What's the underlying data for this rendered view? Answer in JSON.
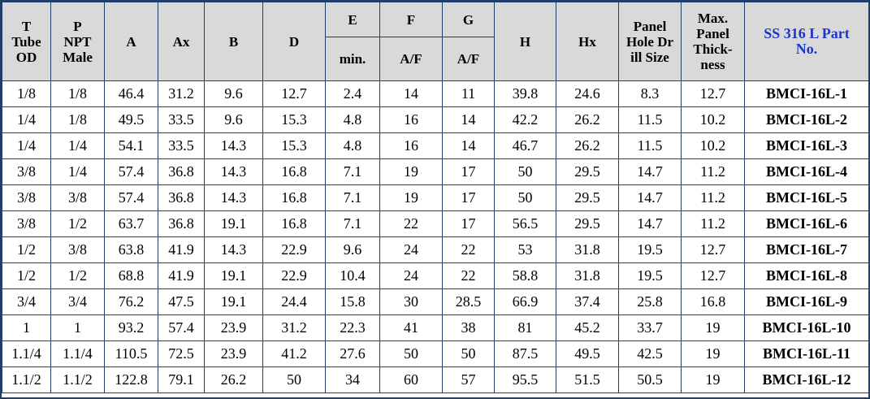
{
  "headers": {
    "t": "T\nTube\nOD",
    "p": "P\nNPT\nMale",
    "a": "A",
    "ax": "Ax",
    "b": "B",
    "d": "D",
    "e": "E",
    "e_sub": "min.",
    "f": "F",
    "f_sub": "A/F",
    "g": "G",
    "g_sub": "A/F",
    "h": "H",
    "hx": "Hx",
    "panel_hole": "Panel\nHole Dr\nill Size",
    "max_panel": "Max.\nPanel\nThick-\nness",
    "part": "SS 316 L Part\nNo."
  },
  "rows": [
    [
      "1/8",
      "1/8",
      "46.4",
      "31.2",
      "9.6",
      "12.7",
      "2.4",
      "14",
      "11",
      "39.8",
      "24.6",
      "8.3",
      "12.7",
      "BMCI-16L-1"
    ],
    [
      "1/4",
      "1/8",
      "49.5",
      "33.5",
      "9.6",
      "15.3",
      "4.8",
      "16",
      "14",
      "42.2",
      "26.2",
      "11.5",
      "10.2",
      "BMCI-16L-2"
    ],
    [
      "1/4",
      "1/4",
      "54.1",
      "33.5",
      "14.3",
      "15.3",
      "4.8",
      "16",
      "14",
      "46.7",
      "26.2",
      "11.5",
      "10.2",
      "BMCI-16L-3"
    ],
    [
      "3/8",
      "1/4",
      "57.4",
      "36.8",
      "14.3",
      "16.8",
      "7.1",
      "19",
      "17",
      "50",
      "29.5",
      "14.7",
      "11.2",
      "BMCI-16L-4"
    ],
    [
      "3/8",
      "3/8",
      "57.4",
      "36.8",
      "14.3",
      "16.8",
      "7.1",
      "19",
      "17",
      "50",
      "29.5",
      "14.7",
      "11.2",
      "BMCI-16L-5"
    ],
    [
      "3/8",
      "1/2",
      "63.7",
      "36.8",
      "19.1",
      "16.8",
      "7.1",
      "22",
      "17",
      "56.5",
      "29.5",
      "14.7",
      "11.2",
      "BMCI-16L-6"
    ],
    [
      "1/2",
      "3/8",
      "63.8",
      "41.9",
      "14.3",
      "22.9",
      "9.6",
      "24",
      "22",
      "53",
      "31.8",
      "19.5",
      "12.7",
      "BMCI-16L-7"
    ],
    [
      "1/2",
      "1/2",
      "68.8",
      "41.9",
      "19.1",
      "22.9",
      "10.4",
      "24",
      "22",
      "58.8",
      "31.8",
      "19.5",
      "12.7",
      "BMCI-16L-8"
    ],
    [
      "3/4",
      "3/4",
      "76.2",
      "47.5",
      "19.1",
      "24.4",
      "15.8",
      "30",
      "28.5",
      "66.9",
      "37.4",
      "25.8",
      "16.8",
      "BMCI-16L-9"
    ],
    [
      "1",
      "1",
      "93.2",
      "57.4",
      "23.9",
      "31.2",
      "22.3",
      "41",
      "38",
      "81",
      "45.2",
      "33.7",
      "19",
      "BMCI-16L-10"
    ],
    [
      "1.1/4",
      "1.1/4",
      "110.5",
      "72.5",
      "23.9",
      "41.2",
      "27.6",
      "50",
      "50",
      "87.5",
      "49.5",
      "42.5",
      "19",
      "BMCI-16L-11"
    ],
    [
      "1.1/2",
      "1.1/2",
      "122.8",
      "79.1",
      "26.2",
      "50",
      "34",
      "60",
      "57",
      "95.5",
      "51.5",
      "50.5",
      "19",
      "BMCI-16L-12"
    ]
  ],
  "colors": {
    "border": "#1f3f6a",
    "header_bg": "#d9d9d9",
    "part_header_text": "#1b36c7"
  }
}
